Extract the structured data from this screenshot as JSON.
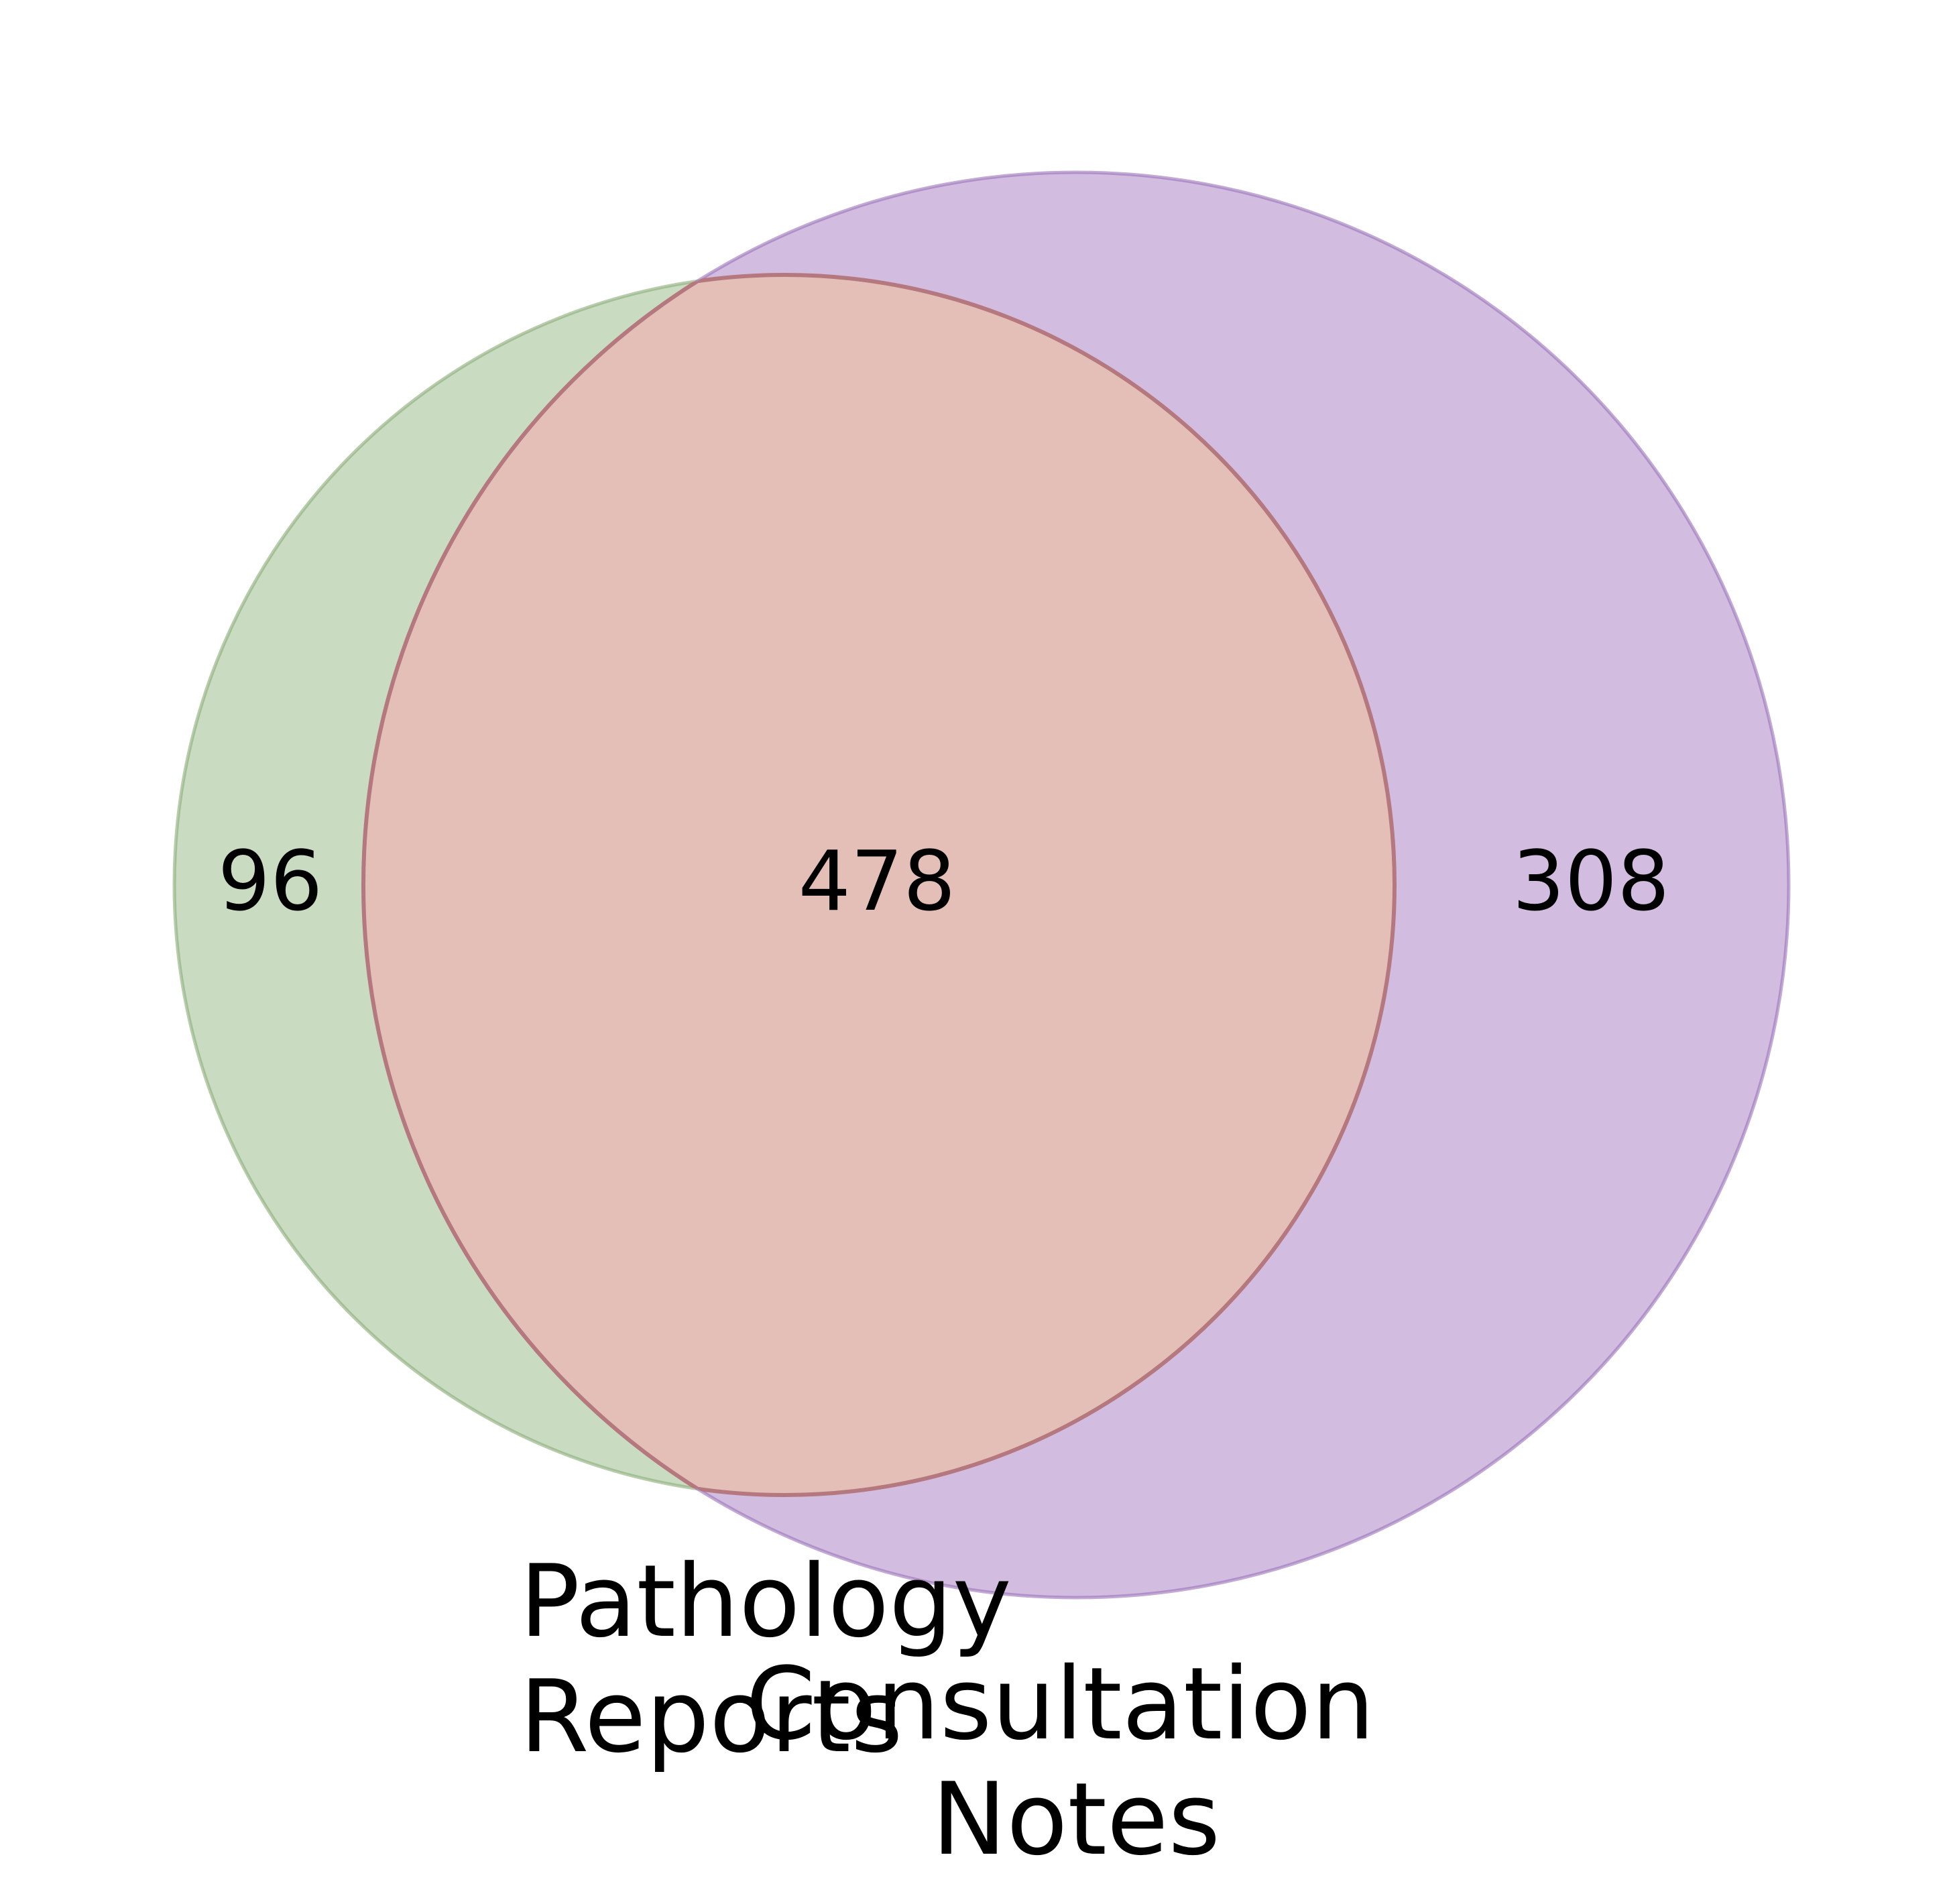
{
  "diagram": {
    "type": "venn2",
    "sets": [
      {
        "id": "A",
        "label_lines": [
          "Pathology",
          "Reports"
        ],
        "color": "#9dbd8c"
      },
      {
        "id": "B",
        "label_lines": [
          "Consultation",
          "Notes"
        ],
        "color": "#a881c4"
      }
    ],
    "regions": {
      "only_A": "96",
      "A_and_B": "478",
      "only_B": "308"
    },
    "colors": {
      "overlap_fill": "#e3bfb8",
      "overlap_edge": "#b4787e"
    }
  }
}
